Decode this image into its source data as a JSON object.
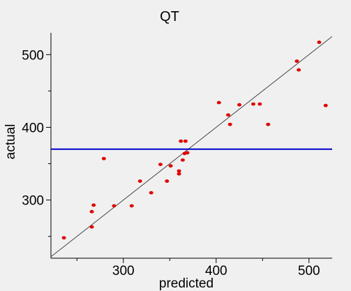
{
  "chart_data": {
    "type": "scatter",
    "title": "QT",
    "xlabel": "predicted",
    "ylabel": "actual",
    "xlim": [
      222,
      525
    ],
    "ylim": [
      220,
      530
    ],
    "xticks": [
      300,
      400,
      500
    ],
    "yticks": [
      300,
      400,
      500
    ],
    "x_tick_labels": [
      "300",
      "400",
      "500"
    ],
    "y_tick_labels": [
      "300",
      "400",
      "500"
    ],
    "minor_step": 50,
    "reference_line": {
      "type": "identity",
      "color": "#444444"
    },
    "horizontal_line": {
      "y": 370,
      "color": "#0000cc"
    },
    "point_color": "#e00000",
    "points": [
      {
        "x": 236,
        "y": 248
      },
      {
        "x": 266,
        "y": 263
      },
      {
        "x": 266,
        "y": 284
      },
      {
        "x": 268,
        "y": 293
      },
      {
        "x": 279,
        "y": 357
      },
      {
        "x": 290,
        "y": 292
      },
      {
        "x": 309,
        "y": 292
      },
      {
        "x": 318,
        "y": 326
      },
      {
        "x": 330,
        "y": 310
      },
      {
        "x": 340,
        "y": 349
      },
      {
        "x": 347,
        "y": 326
      },
      {
        "x": 351,
        "y": 347
      },
      {
        "x": 360,
        "y": 336
      },
      {
        "x": 360,
        "y": 340
      },
      {
        "x": 362,
        "y": 381
      },
      {
        "x": 364,
        "y": 355
      },
      {
        "x": 366,
        "y": 364
      },
      {
        "x": 367,
        "y": 381
      },
      {
        "x": 369,
        "y": 365
      },
      {
        "x": 403,
        "y": 434
      },
      {
        "x": 413,
        "y": 417
      },
      {
        "x": 415,
        "y": 404
      },
      {
        "x": 425,
        "y": 431
      },
      {
        "x": 440,
        "y": 432
      },
      {
        "x": 447,
        "y": 432
      },
      {
        "x": 456,
        "y": 404
      },
      {
        "x": 487,
        "y": 491
      },
      {
        "x": 489,
        "y": 479
      },
      {
        "x": 511,
        "y": 517
      },
      {
        "x": 518,
        "y": 430
      }
    ]
  }
}
